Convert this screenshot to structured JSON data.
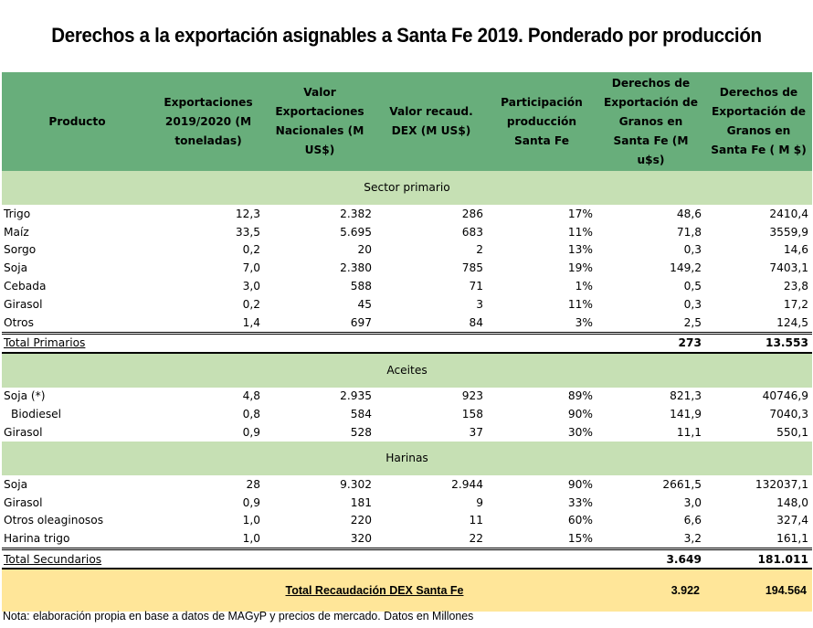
{
  "title": "Derechos a la exportación asignables a Santa Fe 2019. Ponderado por producción",
  "colors": {
    "header_green": "#68ae7b",
    "section_green": "#c6e0b4",
    "grand_total_yellow": "#ffe699"
  },
  "columns": [
    "Producto",
    "Exportaciones 2019/2020 (M toneladas)",
    "Valor Exportaciones Nacionales (M US$)",
    "Valor recaud. DEX (M US$)",
    "Participación producción Santa Fe",
    "Derechos de Exportación de Granos  en Santa Fe (M u$s)",
    "Derechos de Exportación de Granos en Santa Fe ( M $)"
  ],
  "sections": [
    {
      "label": "Sector primario",
      "rows": [
        {
          "producto": "Trigo",
          "export_mt": "12,3",
          "valor_export": "2.382",
          "valor_dex": "286",
          "participacion": "17%",
          "dex_usd": "48,6",
          "dex_ars": "2410,4"
        },
        {
          "producto": "Maíz",
          "export_mt": "33,5",
          "valor_export": "5.695",
          "valor_dex": "683",
          "participacion": "11%",
          "dex_usd": "71,8",
          "dex_ars": "3559,9"
        },
        {
          "producto": "Sorgo",
          "export_mt": "0,2",
          "valor_export": "20",
          "valor_dex": "2",
          "participacion": "13%",
          "dex_usd": "0,3",
          "dex_ars": "14,6"
        },
        {
          "producto": "Soja",
          "export_mt": "7,0",
          "valor_export": "2.380",
          "valor_dex": "785",
          "participacion": "19%",
          "dex_usd": "149,2",
          "dex_ars": "7403,1"
        },
        {
          "producto": "Cebada",
          "export_mt": "3,0",
          "valor_export": "588",
          "valor_dex": "71",
          "participacion": "1%",
          "dex_usd": "0,5",
          "dex_ars": "23,8"
        },
        {
          "producto": "Girasol",
          "export_mt": "0,2",
          "valor_export": "45",
          "valor_dex": "3",
          "participacion": "11%",
          "dex_usd": "0,3",
          "dex_ars": "17,2"
        },
        {
          "producto": "Otros",
          "export_mt": "1,4",
          "valor_export": "697",
          "valor_dex": "84",
          "participacion": "3%",
          "dex_usd": "2,5",
          "dex_ars": "124,5"
        }
      ],
      "total": {
        "label": "Total Primarios",
        "dex_usd": "273",
        "dex_ars": "13.553"
      }
    },
    {
      "label": "Aceites",
      "rows": [
        {
          "producto": "Soja (*)",
          "export_mt": "4,8",
          "valor_export": "2.935",
          "valor_dex": "923",
          "participacion": "89%",
          "dex_usd": "821,3",
          "dex_ars": "40746,9"
        },
        {
          "producto": "Biodiesel",
          "export_mt": "0,8",
          "valor_export": "584",
          "valor_dex": "158",
          "participacion": "90%",
          "dex_usd": "141,9",
          "dex_ars": "7040,3"
        },
        {
          "producto": "Girasol",
          "export_mt": "0,9",
          "valor_export": "528",
          "valor_dex": "37",
          "participacion": "30%",
          "dex_usd": "11,1",
          "dex_ars": "550,1"
        }
      ]
    },
    {
      "label": "Harinas",
      "rows": [
        {
          "producto": "Soja",
          "export_mt": "28",
          "valor_export": "9.302",
          "valor_dex": "2.944",
          "participacion": "90%",
          "dex_usd": "2661,5",
          "dex_ars": "132037,1"
        },
        {
          "producto": "Girasol",
          "export_mt": "0,9",
          "valor_export": "181",
          "valor_dex": "9",
          "participacion": "33%",
          "dex_usd": "3,0",
          "dex_ars": "148,0"
        },
        {
          "producto": "Otros oleaginosos",
          "export_mt": "1,0",
          "valor_export": "220",
          "valor_dex": "11",
          "participacion": "60%",
          "dex_usd": "6,6",
          "dex_ars": "327,4"
        },
        {
          "producto": "Harina trigo",
          "export_mt": "1,0",
          "valor_export": "320",
          "valor_dex": "22",
          "participacion": "15%",
          "dex_usd": "3,2",
          "dex_ars": "161,1"
        }
      ],
      "total": {
        "label": "Total Secundarios",
        "dex_usd": "3.649",
        "dex_ars": "181.011"
      }
    }
  ],
  "grand_total": {
    "label": "Total Recaudación DEX Santa Fe",
    "dex_usd": "3.922",
    "dex_ars": "194.564"
  },
  "note": "Nota: elaboración propia en base a datos de MAGyP y precios de mercado. Datos en Millones"
}
